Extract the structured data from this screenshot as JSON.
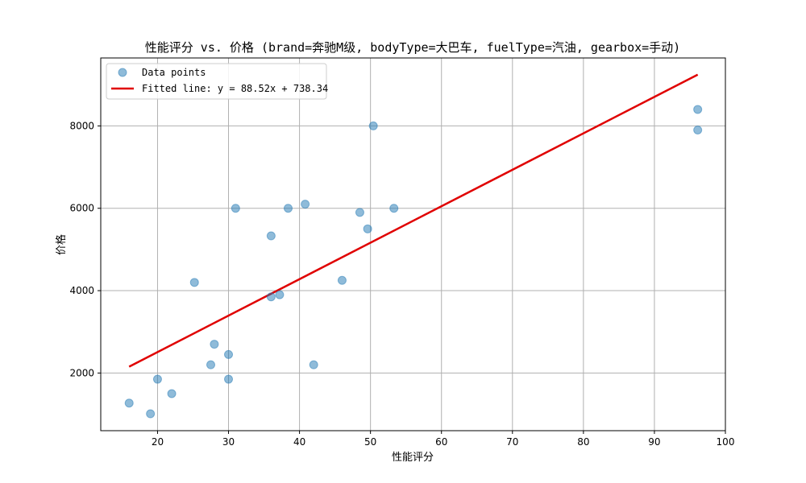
{
  "chart_data": {
    "type": "scatter",
    "title": "性能评分 vs. 价格 (brand=奔驰M级, bodyType=大巴车, fuelType=汽油, gearbox=手动)",
    "xlabel": "性能评分",
    "ylabel": "价格",
    "xlim": [
      12,
      100
    ],
    "ylim": [
      600,
      9650
    ],
    "xticks": [
      20,
      30,
      40,
      50,
      60,
      70,
      80,
      90,
      100
    ],
    "yticks": [
      2000,
      4000,
      6000,
      8000
    ],
    "grid": true,
    "legend": {
      "placement": "top-left"
    },
    "series": [
      {
        "name": "Data points",
        "kind": "scatter",
        "color": "#1f77b4",
        "points": [
          [
            16,
            1270
          ],
          [
            19,
            1010
          ],
          [
            20,
            1850
          ],
          [
            22,
            1500
          ],
          [
            25.2,
            4200
          ],
          [
            27.5,
            2200
          ],
          [
            28,
            2700
          ],
          [
            30,
            2450
          ],
          [
            30,
            1850
          ],
          [
            31,
            6000
          ],
          [
            36,
            5330
          ],
          [
            36,
            3850
          ],
          [
            37.2,
            3900
          ],
          [
            38.4,
            6000
          ],
          [
            40.8,
            6100
          ],
          [
            42,
            2200
          ],
          [
            46,
            4250
          ],
          [
            48.5,
            5900
          ],
          [
            49.6,
            5500
          ],
          [
            50.4,
            8000
          ],
          [
            53.3,
            6000
          ],
          [
            96.1,
            8400
          ],
          [
            96.1,
            7900
          ]
        ]
      },
      {
        "name": "Fitted line: y = 88.52x + 738.34",
        "kind": "line",
        "color": "#e00000",
        "slope": 88.52,
        "intercept": 738.34,
        "x_range": [
          16,
          96.1
        ]
      }
    ]
  }
}
